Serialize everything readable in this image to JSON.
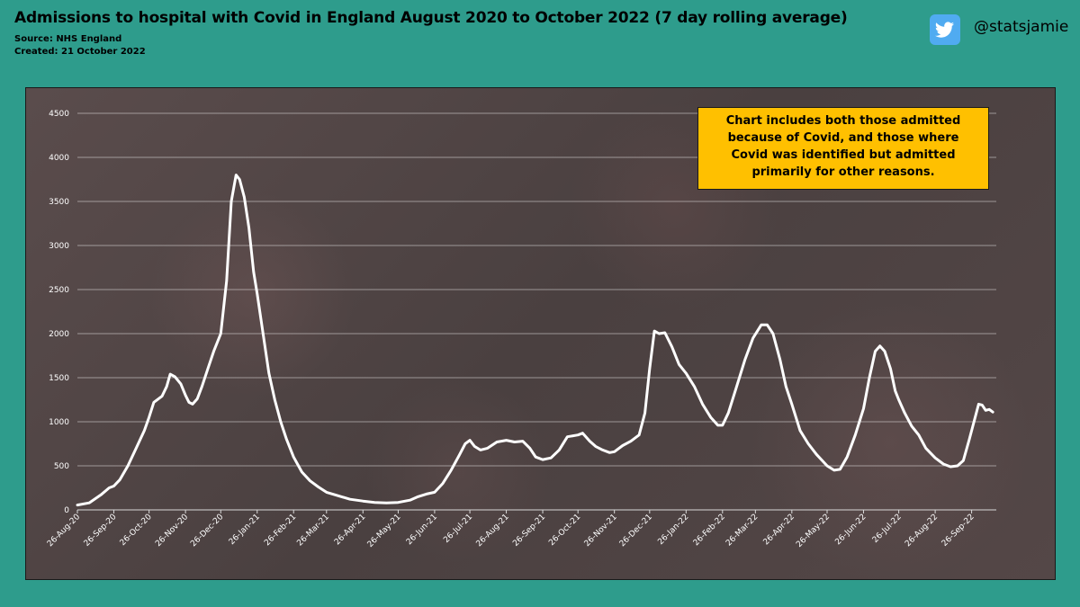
{
  "header": {
    "title": "Admissions to hospital with Covid in England August 2020 to October 2022 (7 day rolling average)",
    "source": "Source: NHS England",
    "created": "Created: 21 October 2022",
    "handle": "@statsjamie",
    "twitter_color": "#50abf1"
  },
  "note": {
    "text": "Chart includes both those admitted because of Covid, and those where Covid was identified but admitted primarily for other reasons."
  },
  "colors": {
    "background": "#2e9c8c",
    "line": "#ffffff",
    "note_background": "#ffc000"
  },
  "chart_data": {
    "type": "line",
    "title": "Admissions to hospital with Covid in England August 2020 to October 2022 (7 day rolling average)",
    "xlabel": "",
    "ylabel": "",
    "ylim": [
      0,
      4500
    ],
    "yticks": [
      0,
      500,
      1000,
      1500,
      2000,
      2500,
      3000,
      3500,
      4000,
      4500
    ],
    "xticks": [
      "26-Aug-20",
      "26-Sep-20",
      "26-Oct-20",
      "26-Nov-20",
      "26-Dec-20",
      "26-Jan-21",
      "26-Feb-21",
      "26-Mar-21",
      "26-Apr-21",
      "26-May-21",
      "26-Jun-21",
      "26-Jul-21",
      "26-Aug-21",
      "26-Sep-21",
      "26-Oct-21",
      "26-Nov-21",
      "26-Dec-21",
      "26-Jan-22",
      "26-Feb-22",
      "26-Mar-22",
      "26-Apr-22",
      "26-May-22",
      "26-Jun-22",
      "26-Jul-22",
      "26-Aug-22",
      "26-Sep-22"
    ],
    "grid": true,
    "legend": "none",
    "series": [
      {
        "name": "",
        "points": [
          [
            "26-Aug-20",
            55
          ],
          [
            "05-Sep-20",
            80
          ],
          [
            "15-Sep-20",
            170
          ],
          [
            "22-Sep-20",
            250
          ],
          [
            "26-Sep-20",
            270
          ],
          [
            "01-Oct-20",
            340
          ],
          [
            "08-Oct-20",
            500
          ],
          [
            "15-Oct-20",
            700
          ],
          [
            "22-Oct-20",
            900
          ],
          [
            "26-Oct-20",
            1050
          ],
          [
            "30-Oct-20",
            1220
          ],
          [
            "06-Nov-20",
            1290
          ],
          [
            "10-Nov-20",
            1400
          ],
          [
            "13-Nov-20",
            1540
          ],
          [
            "17-Nov-20",
            1510
          ],
          [
            "22-Nov-20",
            1430
          ],
          [
            "26-Nov-20",
            1300
          ],
          [
            "29-Nov-20",
            1220
          ],
          [
            "02-Dec-20",
            1200
          ],
          [
            "06-Dec-20",
            1260
          ],
          [
            "10-Dec-20",
            1400
          ],
          [
            "15-Dec-20",
            1600
          ],
          [
            "20-Dec-20",
            1800
          ],
          [
            "26-Dec-20",
            2000
          ],
          [
            "31-Dec-20",
            2600
          ],
          [
            "04-Jan-21",
            3500
          ],
          [
            "08-Jan-21",
            3800
          ],
          [
            "11-Jan-21",
            3750
          ],
          [
            "15-Jan-21",
            3550
          ],
          [
            "19-Jan-21",
            3200
          ],
          [
            "23-Jan-21",
            2700
          ],
          [
            "26-Jan-21",
            2450
          ],
          [
            "31-Jan-21",
            2000
          ],
          [
            "05-Feb-21",
            1550
          ],
          [
            "10-Feb-21",
            1250
          ],
          [
            "15-Feb-21",
            1000
          ],
          [
            "20-Feb-21",
            800
          ],
          [
            "26-Feb-21",
            600
          ],
          [
            "05-Mar-21",
            430
          ],
          [
            "12-Mar-21",
            330
          ],
          [
            "19-Mar-21",
            260
          ],
          [
            "26-Mar-21",
            200
          ],
          [
            "05-Apr-21",
            160
          ],
          [
            "15-Apr-21",
            120
          ],
          [
            "26-Apr-21",
            100
          ],
          [
            "06-May-21",
            85
          ],
          [
            "16-May-21",
            80
          ],
          [
            "26-May-21",
            85
          ],
          [
            "05-Jun-21",
            110
          ],
          [
            "12-Jun-21",
            150
          ],
          [
            "19-Jun-21",
            180
          ],
          [
            "26-Jun-21",
            200
          ],
          [
            "03-Jul-21",
            300
          ],
          [
            "10-Jul-21",
            450
          ],
          [
            "17-Jul-21",
            620
          ],
          [
            "22-Jul-21",
            750
          ],
          [
            "26-Jul-21",
            790
          ],
          [
            "30-Jul-21",
            720
          ],
          [
            "04-Aug-21",
            680
          ],
          [
            "10-Aug-21",
            700
          ],
          [
            "18-Aug-21",
            770
          ],
          [
            "26-Aug-21",
            790
          ],
          [
            "02-Sep-21",
            770
          ],
          [
            "09-Sep-21",
            780
          ],
          [
            "15-Sep-21",
            700
          ],
          [
            "20-Sep-21",
            600
          ],
          [
            "26-Sep-21",
            570
          ],
          [
            "03-Oct-21",
            590
          ],
          [
            "10-Oct-21",
            680
          ],
          [
            "17-Oct-21",
            830
          ],
          [
            "26-Oct-21",
            850
          ],
          [
            "30-Oct-21",
            870
          ],
          [
            "05-Nov-21",
            780
          ],
          [
            "10-Nov-21",
            720
          ],
          [
            "16-Nov-21",
            680
          ],
          [
            "22-Nov-21",
            650
          ],
          [
            "26-Nov-21",
            660
          ],
          [
            "03-Dec-21",
            730
          ],
          [
            "10-Dec-21",
            780
          ],
          [
            "17-Dec-21",
            850
          ],
          [
            "22-Dec-21",
            1100
          ],
          [
            "26-Dec-21",
            1600
          ],
          [
            "30-Dec-21",
            2030
          ],
          [
            "03-Jan-22",
            2000
          ],
          [
            "08-Jan-22",
            2010
          ],
          [
            "14-Jan-22",
            1850
          ],
          [
            "20-Jan-22",
            1650
          ],
          [
            "26-Jan-22",
            1550
          ],
          [
            "02-Feb-22",
            1400
          ],
          [
            "09-Feb-22",
            1200
          ],
          [
            "16-Feb-22",
            1050
          ],
          [
            "22-Feb-22",
            960
          ],
          [
            "26-Feb-22",
            960
          ],
          [
            "03-Mar-22",
            1100
          ],
          [
            "10-Mar-22",
            1400
          ],
          [
            "17-Mar-22",
            1700
          ],
          [
            "24-Mar-22",
            1950
          ],
          [
            "31-Mar-22",
            2100
          ],
          [
            "05-Apr-22",
            2100
          ],
          [
            "10-Apr-22",
            2000
          ],
          [
            "16-Apr-22",
            1700
          ],
          [
            "21-Apr-22",
            1400
          ],
          [
            "26-Apr-22",
            1200
          ],
          [
            "03-May-22",
            900
          ],
          [
            "10-May-22",
            750
          ],
          [
            "17-May-22",
            630
          ],
          [
            "26-May-22",
            500
          ],
          [
            "01-Jun-22",
            450
          ],
          [
            "06-Jun-22",
            460
          ],
          [
            "12-Jun-22",
            600
          ],
          [
            "19-Jun-22",
            850
          ],
          [
            "26-Jun-22",
            1150
          ],
          [
            "01-Jul-22",
            1500
          ],
          [
            "06-Jul-22",
            1800
          ],
          [
            "10-Jul-22",
            1860
          ],
          [
            "14-Jul-22",
            1800
          ],
          [
            "19-Jul-22",
            1600
          ],
          [
            "23-Jul-22",
            1350
          ],
          [
            "26-Jul-22",
            1250
          ],
          [
            "31-Jul-22",
            1100
          ],
          [
            "06-Aug-22",
            950
          ],
          [
            "12-Aug-22",
            850
          ],
          [
            "18-Aug-22",
            700
          ],
          [
            "26-Aug-22",
            590
          ],
          [
            "02-Sep-22",
            520
          ],
          [
            "08-Sep-22",
            490
          ],
          [
            "14-Sep-22",
            500
          ],
          [
            "19-Sep-22",
            560
          ],
          [
            "24-Sep-22",
            800
          ],
          [
            "28-Sep-22",
            1000
          ],
          [
            "02-Oct-22",
            1200
          ],
          [
            "05-Oct-22",
            1190
          ],
          [
            "08-Oct-22",
            1130
          ],
          [
            "11-Oct-22",
            1140
          ],
          [
            "14-Oct-22",
            1110
          ]
        ]
      }
    ]
  }
}
